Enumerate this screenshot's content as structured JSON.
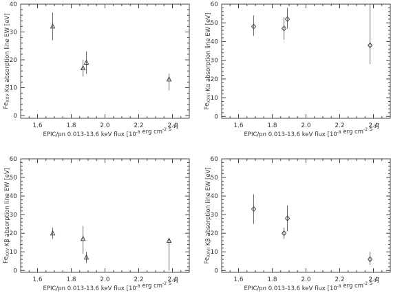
{
  "chart_data": [
    {
      "type": "scatter",
      "xlabel": "EPIC/pn 0.013-13.6 keV flux [10^-8 erg cm^-2 s^-1]",
      "ylabel": "Fe_XXV Kα absorption line EW [eV]",
      "xlim": [
        1.5,
        2.5
      ],
      "ylim": [
        -1,
        40
      ],
      "xticks": [
        "1.6",
        "1.8",
        "2.0",
        "2.2",
        "2.4"
      ],
      "yticks": [
        "0",
        "10",
        "20",
        "30",
        "40"
      ],
      "marker": "triangle",
      "points": [
        {
          "x": 1.69,
          "y": 32,
          "y_low": 27,
          "y_high": 37
        },
        {
          "x": 1.87,
          "y": 17,
          "y_low": 14,
          "y_high": 20
        },
        {
          "x": 1.89,
          "y": 19,
          "y_low": 15,
          "y_high": 23
        },
        {
          "x": 2.38,
          "y": 13,
          "y_low": 9,
          "y_high": 15
        }
      ]
    },
    {
      "type": "scatter",
      "xlabel": "EPIC/pn 0.013-13.6 keV flux [10^-8 erg cm^-2 s^-1]",
      "ylabel": "Fe_XXVI Kα absorption line EW [eV]",
      "xlim": [
        1.5,
        2.5
      ],
      "ylim": [
        -1,
        60
      ],
      "xticks": [
        "1.6",
        "1.8",
        "2.0",
        "2.2",
        "2.4"
      ],
      "yticks": [
        "0",
        "10",
        "20",
        "30",
        "40",
        "50",
        "60"
      ],
      "marker": "diamond",
      "points": [
        {
          "x": 1.69,
          "y": 48,
          "y_low": 43,
          "y_high": 54
        },
        {
          "x": 1.87,
          "y": 47,
          "y_low": 41,
          "y_high": 53
        },
        {
          "x": 1.89,
          "y": 52,
          "y_low": 47,
          "y_high": 58
        },
        {
          "x": 2.38,
          "y": 38,
          "y_low": 28,
          "y_high": 60
        }
      ]
    },
    {
      "type": "scatter",
      "xlabel": "EPIC/pn 0.013-13.6 keV flux [10^-8 erg cm^-2 s^-1]",
      "ylabel": "Fe_XXV Kβ absorption line EW [eV]",
      "xlim": [
        1.5,
        2.5
      ],
      "ylim": [
        -1,
        60
      ],
      "xticks": [
        "1.6",
        "1.8",
        "2.0",
        "2.2",
        "2.4"
      ],
      "yticks": [
        "0",
        "10",
        "20",
        "30",
        "40",
        "50",
        "60"
      ],
      "marker": "triangle",
      "points": [
        {
          "x": 1.69,
          "y": 20,
          "y_low": 17,
          "y_high": 23
        },
        {
          "x": 1.87,
          "y": 17,
          "y_low": 9,
          "y_high": 24
        },
        {
          "x": 1.89,
          "y": 7,
          "y_low": 4,
          "y_high": 10
        },
        {
          "x": 2.38,
          "y": 16,
          "y_low": 0,
          "y_high": 17
        }
      ]
    },
    {
      "type": "scatter",
      "xlabel": "EPIC/pn 0.013-13.6 keV flux [10^-8 erg cm^-2 s^-1]",
      "ylabel": "Fe_XXVI Kβ absorption line EW [eV]",
      "xlim": [
        1.5,
        2.5
      ],
      "ylim": [
        -1,
        60
      ],
      "xticks": [
        "1.6",
        "1.8",
        "2.0",
        "2.2",
        "2.4"
      ],
      "yticks": [
        "0",
        "10",
        "20",
        "30",
        "40",
        "50",
        "60"
      ],
      "marker": "diamond",
      "points": [
        {
          "x": 1.69,
          "y": 33,
          "y_low": 25,
          "y_high": 41
        },
        {
          "x": 1.87,
          "y": 20,
          "y_low": 17,
          "y_high": 23
        },
        {
          "x": 1.89,
          "y": 28,
          "y_low": 21,
          "y_high": 35
        },
        {
          "x": 2.38,
          "y": 6,
          "y_low": 3,
          "y_high": 10
        }
      ]
    }
  ]
}
